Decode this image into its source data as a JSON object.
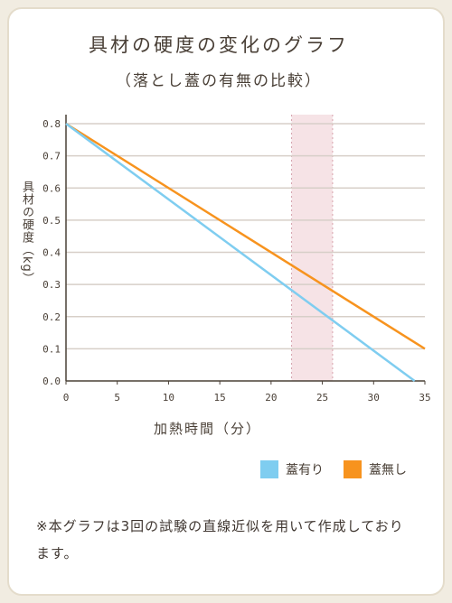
{
  "chart_data": {
    "type": "line",
    "title": "具材の硬度の変化のグラフ",
    "subtitle": "（落とし蓋の有無の比較）",
    "ylabel": "具材の硬度（kg）",
    "xlabel": "加熱時間（分）",
    "xlim": [
      0,
      35
    ],
    "ylim": [
      0,
      0.8
    ],
    "xticks": [
      "0",
      "5",
      "10",
      "15",
      "20",
      "25",
      "30",
      "35"
    ],
    "yticks": [
      "0.0",
      "0.1",
      "0.2",
      "0.3",
      "0.4",
      "0.5",
      "0.6",
      "0.7",
      "0.8"
    ],
    "highlight_range": [
      22,
      26
    ],
    "grid": true,
    "legend_position": "bottom-right",
    "series": [
      {
        "name": "蓋有り",
        "color": "#7fcdf0",
        "x": [
          0,
          34
        ],
        "y": [
          0.8,
          0.0
        ]
      },
      {
        "name": "蓋無し",
        "color": "#f7931e",
        "x": [
          0,
          35
        ],
        "y": [
          0.8,
          0.1
        ]
      }
    ]
  },
  "note": "※本グラフは3回の試験の直線近似を用いて作成しております。",
  "colors": {
    "background": "#f1ece1",
    "card": "#ffffff",
    "highlight": "#f6e3e6",
    "grid": "#d7cfc8"
  }
}
